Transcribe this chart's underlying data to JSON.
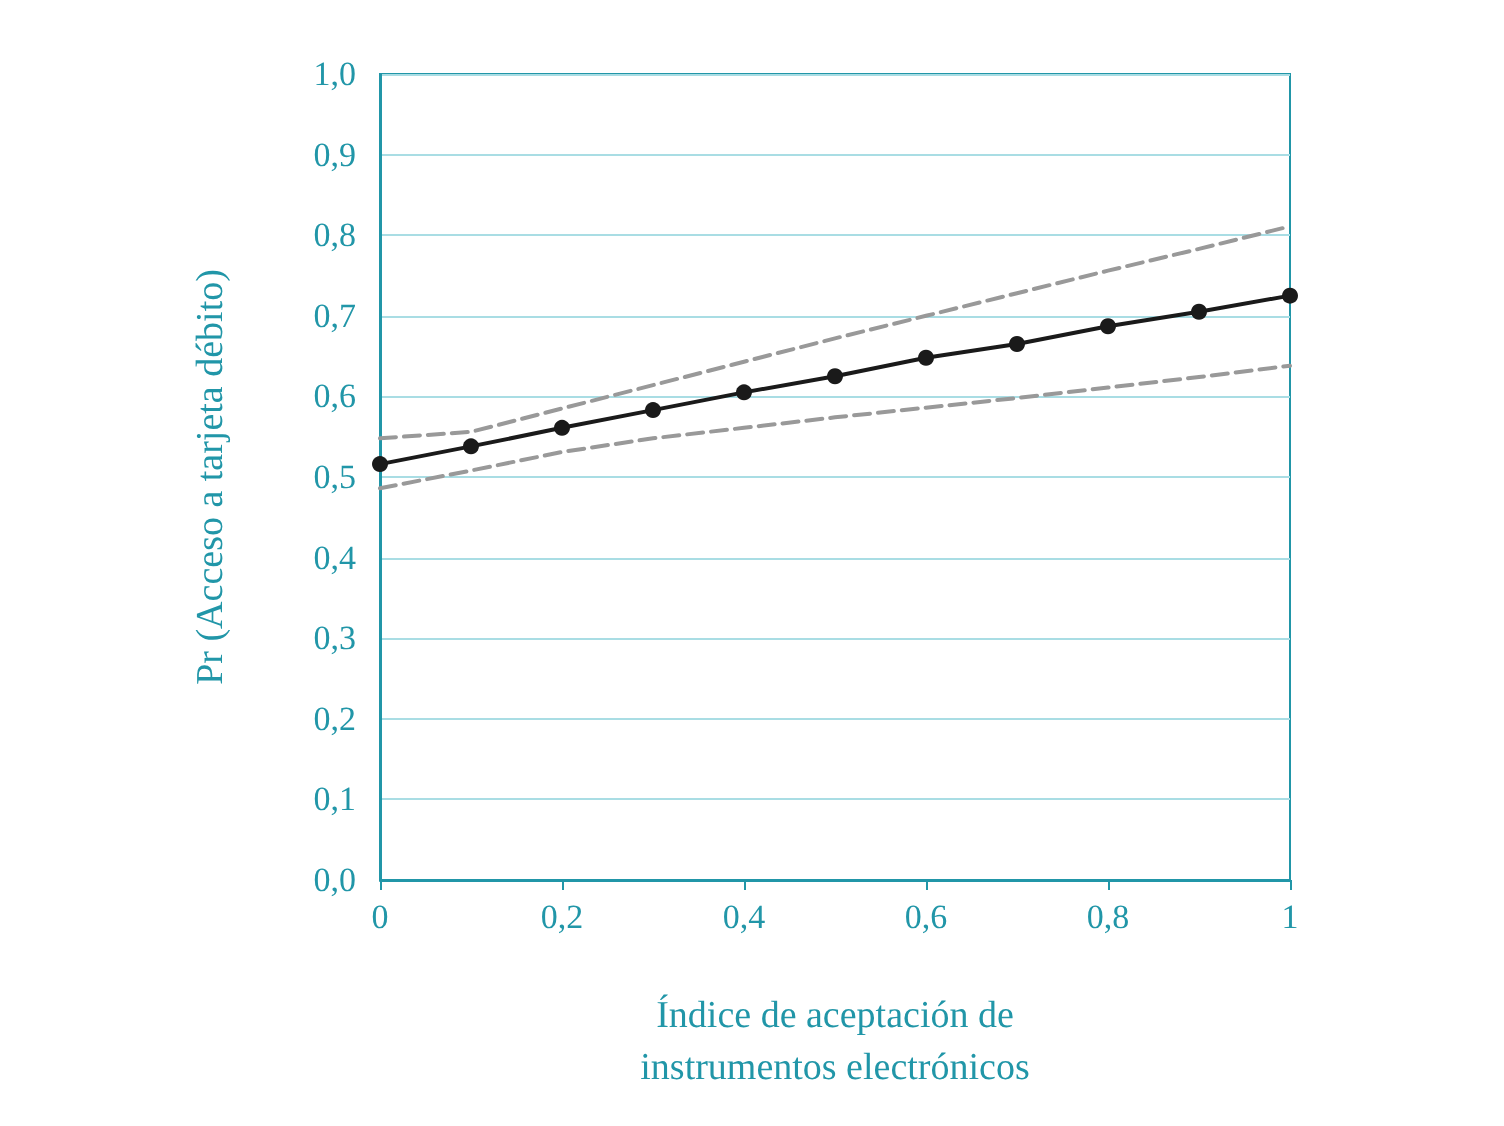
{
  "chart_data": {
    "type": "line",
    "xlabel": "Índice de aceptación de\ninstrumentos electrónicos",
    "ylabel": "Pr (Acceso a tarjeta débito)",
    "x": [
      0,
      0.1,
      0.2,
      0.3,
      0.4,
      0.5,
      0.6,
      0.7,
      0.8,
      0.9,
      1
    ],
    "series": [
      {
        "color": "#1a1a1a",
        "marker": "circle",
        "line_style": "solid",
        "values": [
          0.516,
          0.538,
          0.561,
          0.583,
          0.605,
          0.625,
          0.648,
          0.665,
          0.687,
          0.705,
          0.725
        ]
      },
      {
        "color": "#999999",
        "marker": "none",
        "line_style": "dashed",
        "values": [
          0.548,
          0.556,
          0.585,
          0.614,
          0.643,
          0.672,
          0.7,
          0.728,
          0.756,
          0.783,
          0.811
        ]
      },
      {
        "color": "#999999",
        "marker": "none",
        "line_style": "dashed",
        "values": [
          0.486,
          0.508,
          0.531,
          0.548,
          0.561,
          0.574,
          0.586,
          0.598,
          0.611,
          0.624,
          0.638
        ]
      }
    ],
    "xlim": [
      0,
      1
    ],
    "xticks": [
      0,
      {
        "value": 0.2,
        "label": "0,2"
      },
      {
        "value": 0.4,
        "label": "0,4"
      },
      {
        "value": 0.6,
        "label": "0,6"
      },
      {
        "value": 0.8,
        "label": "0,8"
      },
      1
    ],
    "ylim": [
      0,
      1
    ],
    "yticks": [
      {
        "value": 0,
        "label": "0,0"
      },
      {
        "value": 0.1,
        "label": "0,1"
      },
      {
        "value": 0.2,
        "label": "0,2"
      },
      {
        "value": 0.3,
        "label": "0,3"
      },
      {
        "value": 0.4,
        "label": "0,4"
      },
      {
        "value": 0.5,
        "label": "0,5"
      },
      {
        "value": 0.6,
        "label": "0,6"
      },
      {
        "value": 0.7,
        "label": "0,7"
      },
      {
        "value": 0.8,
        "label": "0,8"
      },
      {
        "value": 0.9,
        "label": "0,9"
      },
      {
        "value": 1,
        "label": "1,0"
      }
    ],
    "grid": "y"
  }
}
